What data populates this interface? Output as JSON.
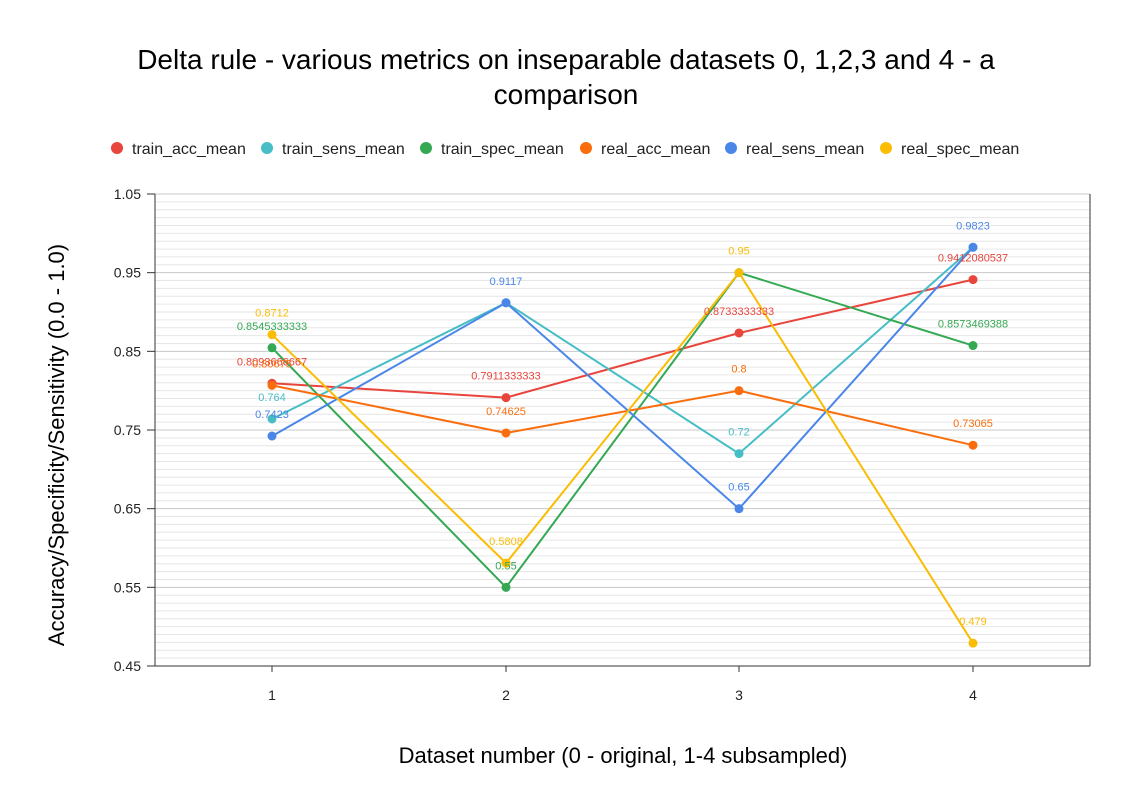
{
  "chart_data": {
    "type": "line",
    "title_line1": "Delta rule - various metrics on inseparable datasets 0, 1,2,3 and 4 - a",
    "title_line2": "comparison",
    "xlabel": "Dataset number (0 - original, 1-4 subsampled)",
    "ylabel": "Accuracy/Specificity/Sensitivity (0.0 - 1.0)",
    "categories": [
      "1",
      "2",
      "3",
      "4"
    ],
    "ylim": [
      0.45,
      1.05
    ],
    "yticks": [
      "0.45",
      "0.55",
      "0.65",
      "0.75",
      "0.85",
      "0.95",
      "1.05"
    ],
    "grid": true,
    "legend_position": "top",
    "series": [
      {
        "name": "train_acc_mean",
        "color": "#e8453c",
        "values": [
          0.8093666667,
          0.7911333333,
          0.8733333333,
          0.9412080537
        ],
        "labels": [
          "0.8093666667",
          "0.7911333333",
          "0.8733333333",
          "0.9412080537"
        ]
      },
      {
        "name": "train_sens_mean",
        "color": "#47bdc6",
        "values": [
          0.764,
          0.9117,
          0.72,
          0.9823
        ],
        "labels": [
          "0.764",
          "",
          "0.72",
          ""
        ]
      },
      {
        "name": "train_spec_mean",
        "color": "#34a853",
        "values": [
          0.8545333333,
          0.55,
          0.95,
          0.8573469388
        ],
        "labels": [
          "0.8545333333",
          "0.55",
          "",
          "0.8573469388"
        ]
      },
      {
        "name": "real_acc_mean",
        "color": "#fa6d0c",
        "values": [
          0.80675,
          0.74625,
          0.8,
          0.73065
        ],
        "labels": [
          "0.80675",
          "0.74625",
          "0.8",
          "0.73065"
        ]
      },
      {
        "name": "real_sens_mean",
        "color": "#4a86e8",
        "values": [
          0.7423,
          0.9117,
          0.65,
          0.9823
        ],
        "labels": [
          "0.7423",
          "0.9117",
          "0.65",
          "0.9823"
        ]
      },
      {
        "name": "real_spec_mean",
        "color": "#fbbc04",
        "values": [
          0.8712,
          0.5808,
          0.95,
          0.479
        ],
        "labels": [
          "0.8712",
          "0.5808",
          "0.95",
          "0.479"
        ]
      }
    ]
  }
}
